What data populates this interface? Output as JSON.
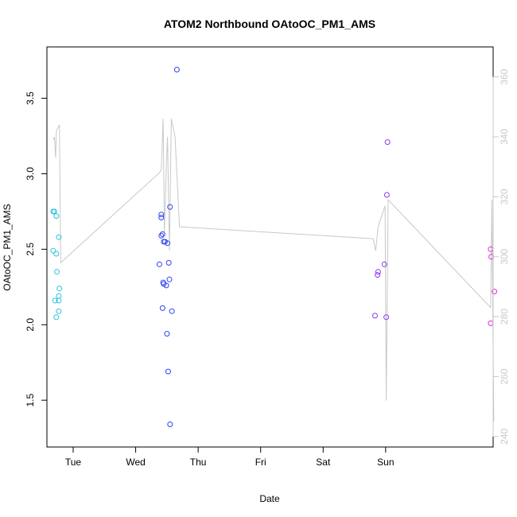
{
  "chart_data": {
    "type": "scatter",
    "title": "ATOM2 Northbound OAtoOC_PM1_AMS",
    "xlabel": "Date",
    "ylabel": "OAtoOC_PM1_AMS",
    "x_unit": "days",
    "xlim": [
      -0.42,
      6.72
    ],
    "ylim": [
      1.19,
      3.84
    ],
    "y2lim": [
      236.5,
      370.0
    ],
    "x_ticks": [
      {
        "label": "Tue",
        "value": 0
      },
      {
        "label": "Wed",
        "value": 1
      },
      {
        "label": "Thu",
        "value": 2
      },
      {
        "label": "Fri",
        "value": 3
      },
      {
        "label": "Sat",
        "value": 4
      },
      {
        "label": "Sun",
        "value": 5
      }
    ],
    "y_ticks": [
      "1.5",
      "2.0",
      "2.5",
      "3.0",
      "3.5"
    ],
    "y2_ticks": [
      "240",
      "260",
      "280",
      "300",
      "320",
      "340",
      "360"
    ],
    "grid": false,
    "legend": "none",
    "colors": {
      "axis": "#000000",
      "secondary_axis": "#c8c8c8",
      "secondary_line": "#c8c8c8"
    },
    "series": [
      {
        "color": "#2bc3dd",
        "points": [
          [
            -0.32,
            2.75
          ],
          [
            -0.3,
            2.75
          ],
          [
            -0.27,
            2.72
          ],
          [
            -0.32,
            2.49
          ],
          [
            -0.27,
            2.47
          ],
          [
            -0.23,
            2.58
          ],
          [
            -0.26,
            2.35
          ],
          [
            -0.22,
            2.24
          ],
          [
            -0.23,
            2.19
          ],
          [
            -0.23,
            2.16
          ],
          [
            -0.29,
            2.16
          ],
          [
            -0.23,
            2.09
          ],
          [
            -0.27,
            2.05
          ]
        ]
      },
      {
        "color": "#2b43f0",
        "points": [
          [
            1.66,
            3.69
          ],
          [
            1.55,
            2.78
          ],
          [
            1.41,
            2.73
          ],
          [
            1.41,
            2.71
          ],
          [
            1.41,
            2.59
          ],
          [
            1.43,
            2.6
          ],
          [
            1.45,
            2.55
          ],
          [
            1.47,
            2.55
          ],
          [
            1.51,
            2.54
          ],
          [
            1.38,
            2.4
          ],
          [
            1.53,
            2.41
          ],
          [
            1.44,
            2.28
          ],
          [
            1.45,
            2.27
          ],
          [
            1.49,
            2.26
          ],
          [
            1.54,
            2.3
          ],
          [
            1.43,
            2.11
          ],
          [
            1.58,
            2.09
          ],
          [
            1.5,
            1.94
          ],
          [
            1.52,
            1.69
          ],
          [
            1.55,
            1.34
          ]
        ]
      },
      {
        "color": "#8a3ce8",
        "points": [
          [
            5.03,
            3.21
          ],
          [
            5.02,
            2.86
          ],
          [
            4.98,
            2.4
          ],
          [
            4.88,
            2.35
          ],
          [
            4.87,
            2.33
          ],
          [
            4.83,
            2.06
          ],
          [
            5.01,
            2.05
          ]
        ]
      },
      {
        "color": "#dd2bd8",
        "points": [
          [
            6.68,
            2.5
          ],
          [
            6.69,
            2.45
          ],
          [
            6.74,
            2.22
          ],
          [
            6.68,
            2.01
          ]
        ]
      }
    ],
    "secondary_series": {
      "color": "#c8c8c8",
      "points": [
        [
          -0.32,
          339
        ],
        [
          -0.3,
          340
        ],
        [
          -0.28,
          333
        ],
        [
          -0.27,
          342
        ],
        [
          -0.22,
          344
        ],
        [
          -0.2,
          298
        ],
        [
          1.38,
          328
        ],
        [
          1.41,
          329
        ],
        [
          1.44,
          346
        ],
        [
          1.46,
          308
        ],
        [
          1.49,
          330
        ],
        [
          1.51,
          340
        ],
        [
          1.54,
          302
        ],
        [
          1.57,
          346
        ],
        [
          1.63,
          340
        ],
        [
          1.7,
          310
        ],
        [
          4.8,
          306
        ],
        [
          4.84,
          302
        ],
        [
          4.88,
          310
        ],
        [
          4.99,
          317
        ],
        [
          5.01,
          252
        ],
        [
          5.04,
          319
        ],
        [
          6.68,
          283
        ],
        [
          6.7,
          319
        ],
        [
          6.73,
          245
        ]
      ]
    }
  }
}
